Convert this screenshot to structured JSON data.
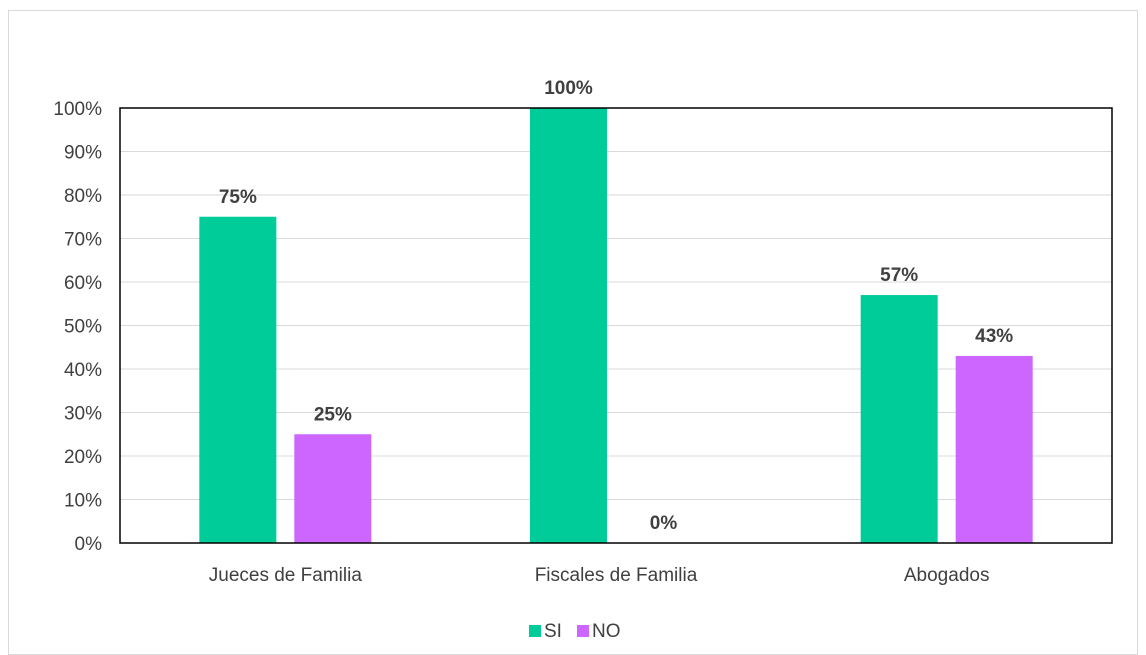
{
  "chart_data": {
    "type": "bar",
    "categories": [
      "Jueces de Familia",
      "Fiscales de Familia",
      "Abogados"
    ],
    "series": [
      {
        "name": "SI",
        "values": [
          75,
          100,
          57
        ],
        "labels": [
          "75%",
          "100%",
          "57%"
        ],
        "color": "#00cc99"
      },
      {
        "name": "NO",
        "values": [
          25,
          0,
          43
        ],
        "labels": [
          "25%",
          "0%",
          "43%"
        ],
        "color": "#cc66ff"
      }
    ],
    "y_ticks": [
      "0%",
      "10%",
      "20%",
      "30%",
      "40%",
      "50%",
      "60%",
      "70%",
      "80%",
      "90%",
      "100%"
    ],
    "ylim": [
      0,
      100
    ],
    "grid": true,
    "legend_position": "bottom",
    "title": "",
    "xlabel": "",
    "ylabel": ""
  }
}
